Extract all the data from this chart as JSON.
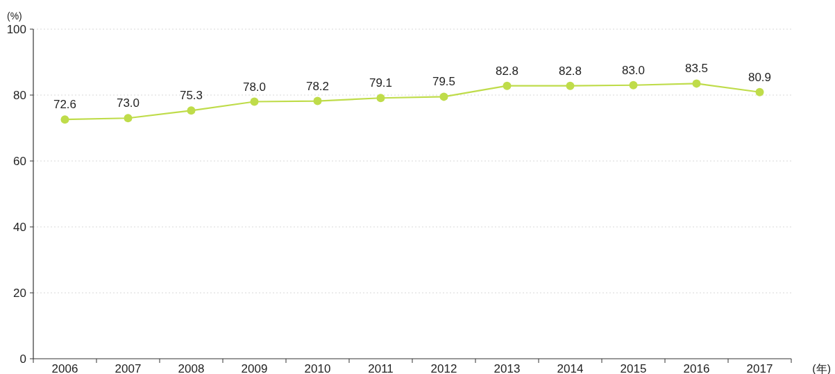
{
  "chart_data": {
    "type": "line",
    "ylabel": "(%)",
    "xlabel": "(年)",
    "categories": [
      "2006",
      "2007",
      "2008",
      "2009",
      "2010",
      "2011",
      "2012",
      "2013",
      "2014",
      "2015",
      "2016",
      "2017"
    ],
    "series": [
      {
        "color": "#bfdc4a",
        "values": [
          72.6,
          73.0,
          75.3,
          78.0,
          78.2,
          79.1,
          79.5,
          82.8,
          82.8,
          83.0,
          83.5,
          80.9
        ]
      }
    ],
    "value_labels": [
      "72.6",
      "73.0",
      "75.3",
      "78.0",
      "78.2",
      "79.1",
      "79.5",
      "82.8",
      "82.8",
      "83.0",
      "83.5",
      "80.9"
    ],
    "ylim": [
      0,
      100
    ],
    "yticks": [
      0,
      20,
      40,
      60,
      80,
      100
    ],
    "grid": "y",
    "marker": "circle",
    "line_style": "solid"
  }
}
